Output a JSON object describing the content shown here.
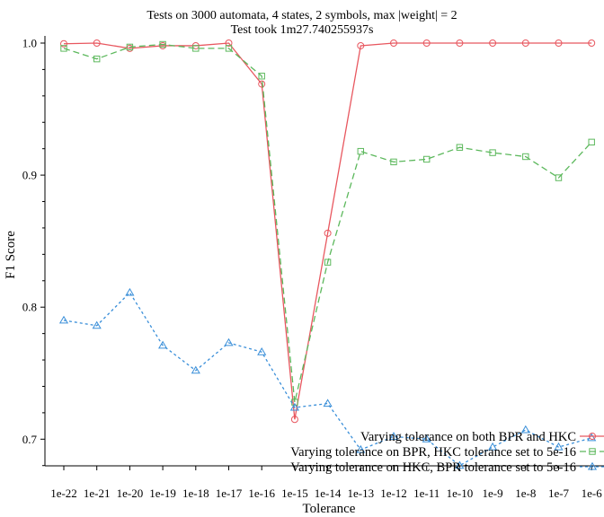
{
  "chart_data": {
    "type": "line",
    "title": "Tests on 3000 automata, 4 states, 2 symbols, max |weight| = 2",
    "subtitle": "Test took 1m27.740255937s",
    "xlabel": "Tolerance",
    "ylabel": "F1 Score",
    "ylim": [
      0.66,
      1.0
    ],
    "yticks": [
      "0.7",
      "0.8",
      "0.9",
      "1.0"
    ],
    "categories": [
      "1e-22",
      "1e-21",
      "1e-20",
      "1e-19",
      "1e-18",
      "1e-17",
      "1e-16",
      "1e-15",
      "1e-14",
      "1e-13",
      "1e-12",
      "1e-11",
      "1e-10",
      "1e-9",
      "1e-8",
      "1e-7",
      "1e-6"
    ],
    "legend_position": "bottom-right",
    "grid": false,
    "series": [
      {
        "name": "Varying tolerance on both BPR and HKC",
        "color": "#e8575f",
        "dash": "solid",
        "marker": "circle",
        "values": [
          0.9995,
          1.0,
          0.996,
          0.998,
          0.998,
          1.0,
          0.969,
          0.715,
          0.856,
          0.998,
          1.0,
          1.0,
          1.0,
          1.0,
          1.0,
          1.0,
          1.0
        ]
      },
      {
        "name": "Varying tolerance on BPR, HKC tolerance set to 5e-16",
        "color": "#5cb85c",
        "dash": "dashed",
        "marker": "square",
        "values": [
          0.996,
          0.988,
          0.997,
          0.999,
          0.996,
          0.996,
          0.975,
          0.728,
          0.834,
          0.918,
          0.91,
          0.912,
          0.921,
          0.917,
          0.914,
          0.898,
          0.925
        ]
      },
      {
        "name": "Varying tolerance on HKC, BPR tolerance set to 5e-16",
        "color": "#3a8fd9",
        "dash": "dotted",
        "marker": "triangle",
        "values": [
          0.79,
          0.786,
          0.811,
          0.771,
          0.752,
          0.773,
          0.766,
          0.724,
          0.727,
          0.692,
          0.702,
          0.7,
          0.68,
          0.694,
          0.707,
          0.694,
          0.701
        ]
      }
    ]
  }
}
